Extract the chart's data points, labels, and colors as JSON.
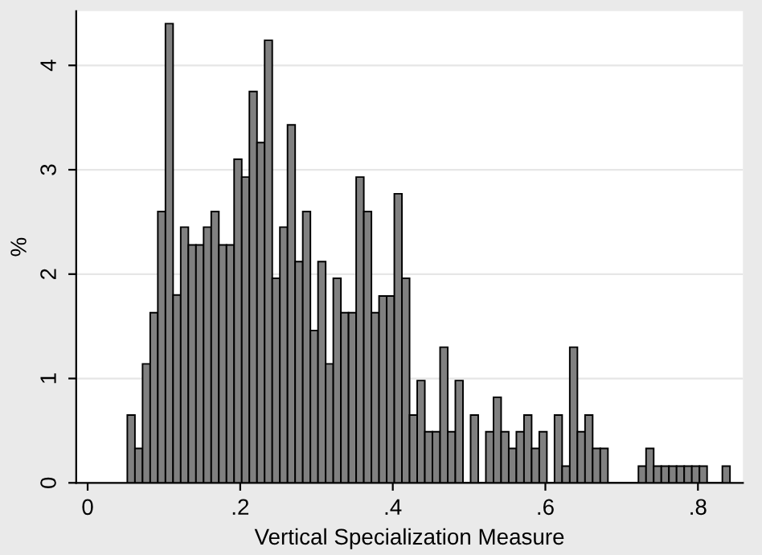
{
  "chart_data": {
    "type": "histogram",
    "xlabel": "Vertical Specialization Measure",
    "ylabel": "%",
    "bins": [
      0.052,
      0.062,
      0.072,
      0.082,
      0.092,
      0.102,
      0.112,
      0.122,
      0.132,
      0.142,
      0.152,
      0.162,
      0.172,
      0.182,
      0.192,
      0.202,
      0.212,
      0.222,
      0.232,
      0.242,
      0.252,
      0.262,
      0.272,
      0.282,
      0.292,
      0.302,
      0.312,
      0.322,
      0.332,
      0.342,
      0.352,
      0.362,
      0.372,
      0.382,
      0.392,
      0.402,
      0.412,
      0.422,
      0.432,
      0.442,
      0.452,
      0.462,
      0.472,
      0.482,
      0.492,
      0.502,
      0.512,
      0.522,
      0.532,
      0.542,
      0.552,
      0.562,
      0.572,
      0.582,
      0.592,
      0.602,
      0.612,
      0.622,
      0.632,
      0.642,
      0.652,
      0.662,
      0.672,
      0.682,
      0.692,
      0.702,
      0.712,
      0.722,
      0.732,
      0.742,
      0.752,
      0.762,
      0.772,
      0.782,
      0.792,
      0.802,
      0.812,
      0.822,
      0.832,
      0.842
    ],
    "values": [
      0.65,
      0.33,
      1.14,
      1.63,
      2.6,
      4.4,
      1.8,
      2.45,
      2.28,
      2.28,
      2.45,
      2.6,
      2.28,
      2.28,
      3.1,
      2.93,
      3.75,
      3.26,
      4.24,
      1.96,
      2.45,
      3.43,
      2.12,
      2.6,
      1.46,
      2.12,
      1.14,
      1.96,
      1.63,
      1.63,
      2.93,
      2.6,
      1.63,
      1.79,
      1.79,
      2.77,
      1.96,
      0.65,
      0.98,
      0.49,
      0.49,
      1.3,
      0.49,
      0.98,
      0,
      0.65,
      0,
      0.49,
      0.82,
      0.49,
      0.33,
      0.49,
      0.65,
      0.33,
      0.49,
      0,
      0.65,
      0.16,
      1.3,
      0.49,
      0.65,
      0.33,
      0.33,
      0,
      0,
      0,
      0,
      0.16,
      0.33,
      0.16,
      0.16,
      0.16,
      0.16,
      0.16,
      0.16,
      0.16,
      0,
      0,
      0.16
    ],
    "color": "#808080",
    "xlim": [
      -0.015,
      0.859
    ],
    "ylim": [
      0,
      4.52
    ],
    "xticks": [
      0,
      {
        "value": 0.2,
        "label": ".2"
      },
      {
        "value": 0.4,
        "label": ".4"
      },
      {
        "value": 0.6,
        "label": ".6"
      },
      {
        "value": 0.8,
        "label": ".8"
      }
    ],
    "yticks": [
      0,
      1,
      2,
      3,
      4
    ],
    "grid": "y"
  }
}
